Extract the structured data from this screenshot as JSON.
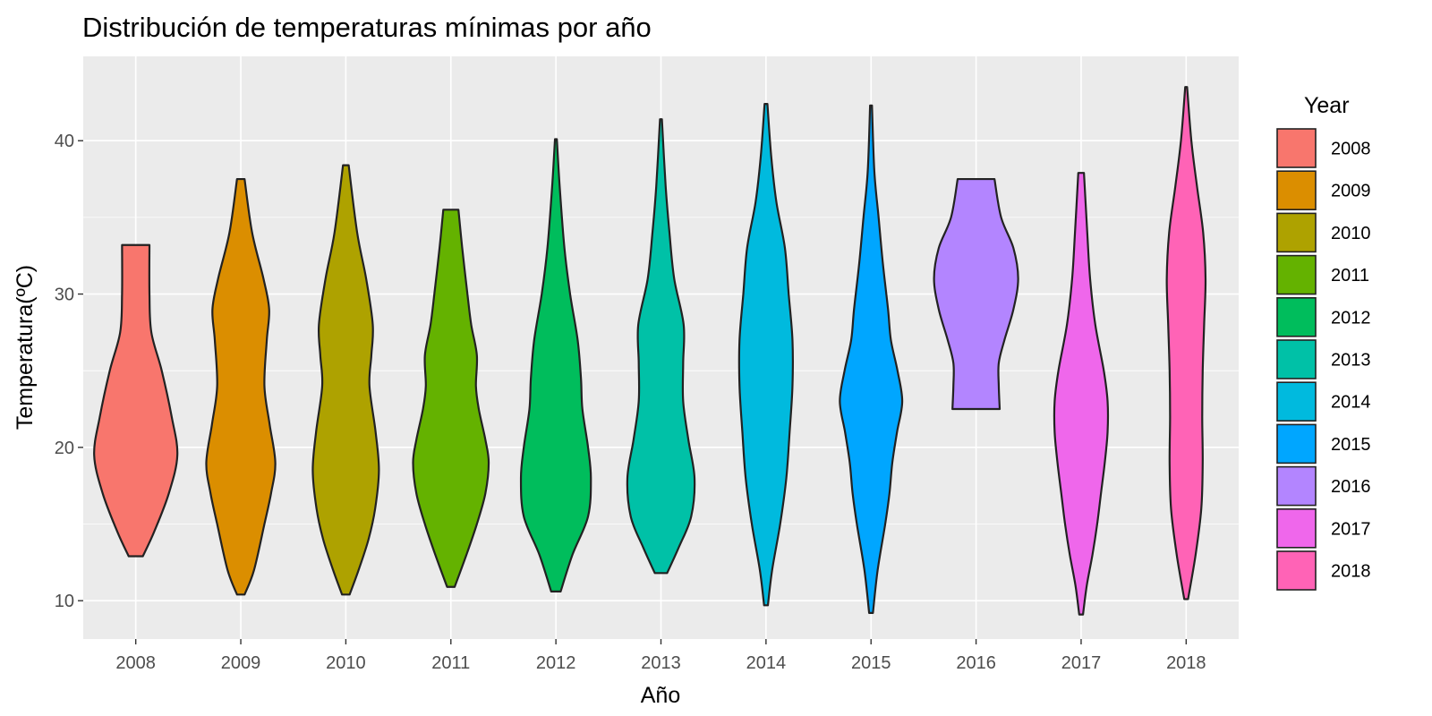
{
  "chart_data": {
    "type": "violin",
    "title": "Distribución de temperaturas mínimas por año",
    "xlabel": "Año",
    "ylabel": "Temperatura(ºC)",
    "ylim": [
      7.5,
      45.5
    ],
    "yticks": [
      10,
      20,
      30,
      40
    ],
    "grid": true,
    "legend": {
      "title": "Year",
      "position": "right",
      "entries": [
        "2008",
        "2009",
        "2010",
        "2011",
        "2012",
        "2013",
        "2014",
        "2015",
        "2016",
        "2017",
        "2018"
      ]
    },
    "categories": [
      "2008",
      "2009",
      "2010",
      "2011",
      "2012",
      "2013",
      "2014",
      "2015",
      "2016",
      "2017",
      "2018"
    ],
    "colors": [
      "#F8766D",
      "#DB8E00",
      "#AEA200",
      "#64B200",
      "#00BD5C",
      "#00C1A7",
      "#00BADE",
      "#00A6FF",
      "#B385FF",
      "#EF67EB",
      "#FF63B6"
    ],
    "series": [
      {
        "category": "2008",
        "min": 12.9,
        "max": 33.2,
        "profile": [
          [
            12.9,
            0.15
          ],
          [
            14.5,
            0.39
          ],
          [
            17,
            0.7
          ],
          [
            19.5,
            0.88
          ],
          [
            22,
            0.76
          ],
          [
            25,
            0.55
          ],
          [
            27.5,
            0.33
          ],
          [
            30,
            0.29
          ],
          [
            33.2,
            0.29
          ]
        ]
      },
      {
        "category": "2009",
        "min": 10.4,
        "max": 37.5,
        "profile": [
          [
            10.4,
            0.08
          ],
          [
            12,
            0.28
          ],
          [
            15,
            0.5
          ],
          [
            17,
            0.64
          ],
          [
            19,
            0.73
          ],
          [
            21.5,
            0.61
          ],
          [
            24,
            0.5
          ],
          [
            27,
            0.55
          ],
          [
            29,
            0.6
          ],
          [
            31,
            0.48
          ],
          [
            34,
            0.24
          ],
          [
            37.5,
            0.08
          ]
        ]
      },
      {
        "category": "2010",
        "min": 10.4,
        "max": 38.4,
        "profile": [
          [
            10.4,
            0.08
          ],
          [
            12,
            0.27
          ],
          [
            14,
            0.48
          ],
          [
            16,
            0.62
          ],
          [
            18.5,
            0.7
          ],
          [
            21,
            0.63
          ],
          [
            24,
            0.5
          ],
          [
            26,
            0.54
          ],
          [
            28,
            0.57
          ],
          [
            31,
            0.43
          ],
          [
            34,
            0.24
          ],
          [
            38.4,
            0.06
          ]
        ]
      },
      {
        "category": "2011",
        "min": 10.9,
        "max": 35.5,
        "profile": [
          [
            10.9,
            0.08
          ],
          [
            13,
            0.33
          ],
          [
            15,
            0.55
          ],
          [
            17,
            0.73
          ],
          [
            19,
            0.8
          ],
          [
            20.5,
            0.73
          ],
          [
            22.5,
            0.59
          ],
          [
            24,
            0.53
          ],
          [
            26,
            0.55
          ],
          [
            28,
            0.43
          ],
          [
            30,
            0.35
          ],
          [
            33,
            0.24
          ],
          [
            35.5,
            0.16
          ]
        ]
      },
      {
        "category": "2012",
        "min": 10.6,
        "max": 40.1,
        "profile": [
          [
            10.6,
            0.1
          ],
          [
            13,
            0.35
          ],
          [
            15.5,
            0.68
          ],
          [
            18,
            0.74
          ],
          [
            20,
            0.68
          ],
          [
            22.5,
            0.56
          ],
          [
            24.5,
            0.53
          ],
          [
            27,
            0.46
          ],
          [
            30,
            0.3
          ],
          [
            33,
            0.18
          ],
          [
            37,
            0.08
          ],
          [
            40.1,
            0.02
          ]
        ]
      },
      {
        "category": "2013",
        "min": 11.8,
        "max": 41.4,
        "profile": [
          [
            11.8,
            0.13
          ],
          [
            13.5,
            0.38
          ],
          [
            15.5,
            0.64
          ],
          [
            18,
            0.71
          ],
          [
            20.5,
            0.58
          ],
          [
            23,
            0.47
          ],
          [
            25.5,
            0.47
          ],
          [
            28,
            0.48
          ],
          [
            31,
            0.28
          ],
          [
            34,
            0.18
          ],
          [
            37,
            0.1
          ],
          [
            41.4,
            0.02
          ]
        ]
      },
      {
        "category": "2014",
        "min": 9.7,
        "max": 42.4,
        "profile": [
          [
            9.7,
            0.04
          ],
          [
            12,
            0.13
          ],
          [
            15,
            0.3
          ],
          [
            18,
            0.43
          ],
          [
            21,
            0.5
          ],
          [
            24,
            0.56
          ],
          [
            27,
            0.56
          ],
          [
            30,
            0.48
          ],
          [
            33,
            0.4
          ],
          [
            36,
            0.22
          ],
          [
            39,
            0.11
          ],
          [
            42.4,
            0.03
          ]
        ]
      },
      {
        "category": "2015",
        "min": 9.2,
        "max": 42.3,
        "profile": [
          [
            9.2,
            0.04
          ],
          [
            12,
            0.14
          ],
          [
            15,
            0.3
          ],
          [
            17,
            0.39
          ],
          [
            19,
            0.45
          ],
          [
            21,
            0.55
          ],
          [
            23,
            0.66
          ],
          [
            25,
            0.56
          ],
          [
            27,
            0.42
          ],
          [
            29,
            0.36
          ],
          [
            32,
            0.25
          ],
          [
            35,
            0.16
          ],
          [
            38,
            0.07
          ],
          [
            42.3,
            0.02
          ]
        ]
      },
      {
        "category": "2016",
        "min": 22.5,
        "max": 37.5,
        "profile": [
          [
            22.5,
            0.5
          ],
          [
            24,
            0.48
          ],
          [
            25.5,
            0.48
          ],
          [
            27,
            0.6
          ],
          [
            29,
            0.79
          ],
          [
            31,
            0.89
          ],
          [
            33,
            0.79
          ],
          [
            35,
            0.53
          ],
          [
            37.5,
            0.39
          ]
        ]
      },
      {
        "category": "2017",
        "min": 9.1,
        "max": 37.9,
        "profile": [
          [
            9.1,
            0.04
          ],
          [
            11,
            0.12
          ],
          [
            13,
            0.24
          ],
          [
            15,
            0.34
          ],
          [
            17,
            0.42
          ],
          [
            19,
            0.5
          ],
          [
            21,
            0.56
          ],
          [
            23,
            0.56
          ],
          [
            25,
            0.48
          ],
          [
            28,
            0.3
          ],
          [
            31,
            0.19
          ],
          [
            34,
            0.13
          ],
          [
            37.9,
            0.06
          ]
        ]
      },
      {
        "category": "2018",
        "min": 10.1,
        "max": 43.5,
        "profile": [
          [
            10.1,
            0.04
          ],
          [
            13,
            0.2
          ],
          [
            16,
            0.32
          ],
          [
            19,
            0.35
          ],
          [
            22,
            0.34
          ],
          [
            25,
            0.35
          ],
          [
            28,
            0.38
          ],
          [
            31,
            0.41
          ],
          [
            34,
            0.36
          ],
          [
            37,
            0.23
          ],
          [
            40,
            0.11
          ],
          [
            43.5,
            0.02
          ]
        ]
      }
    ]
  }
}
